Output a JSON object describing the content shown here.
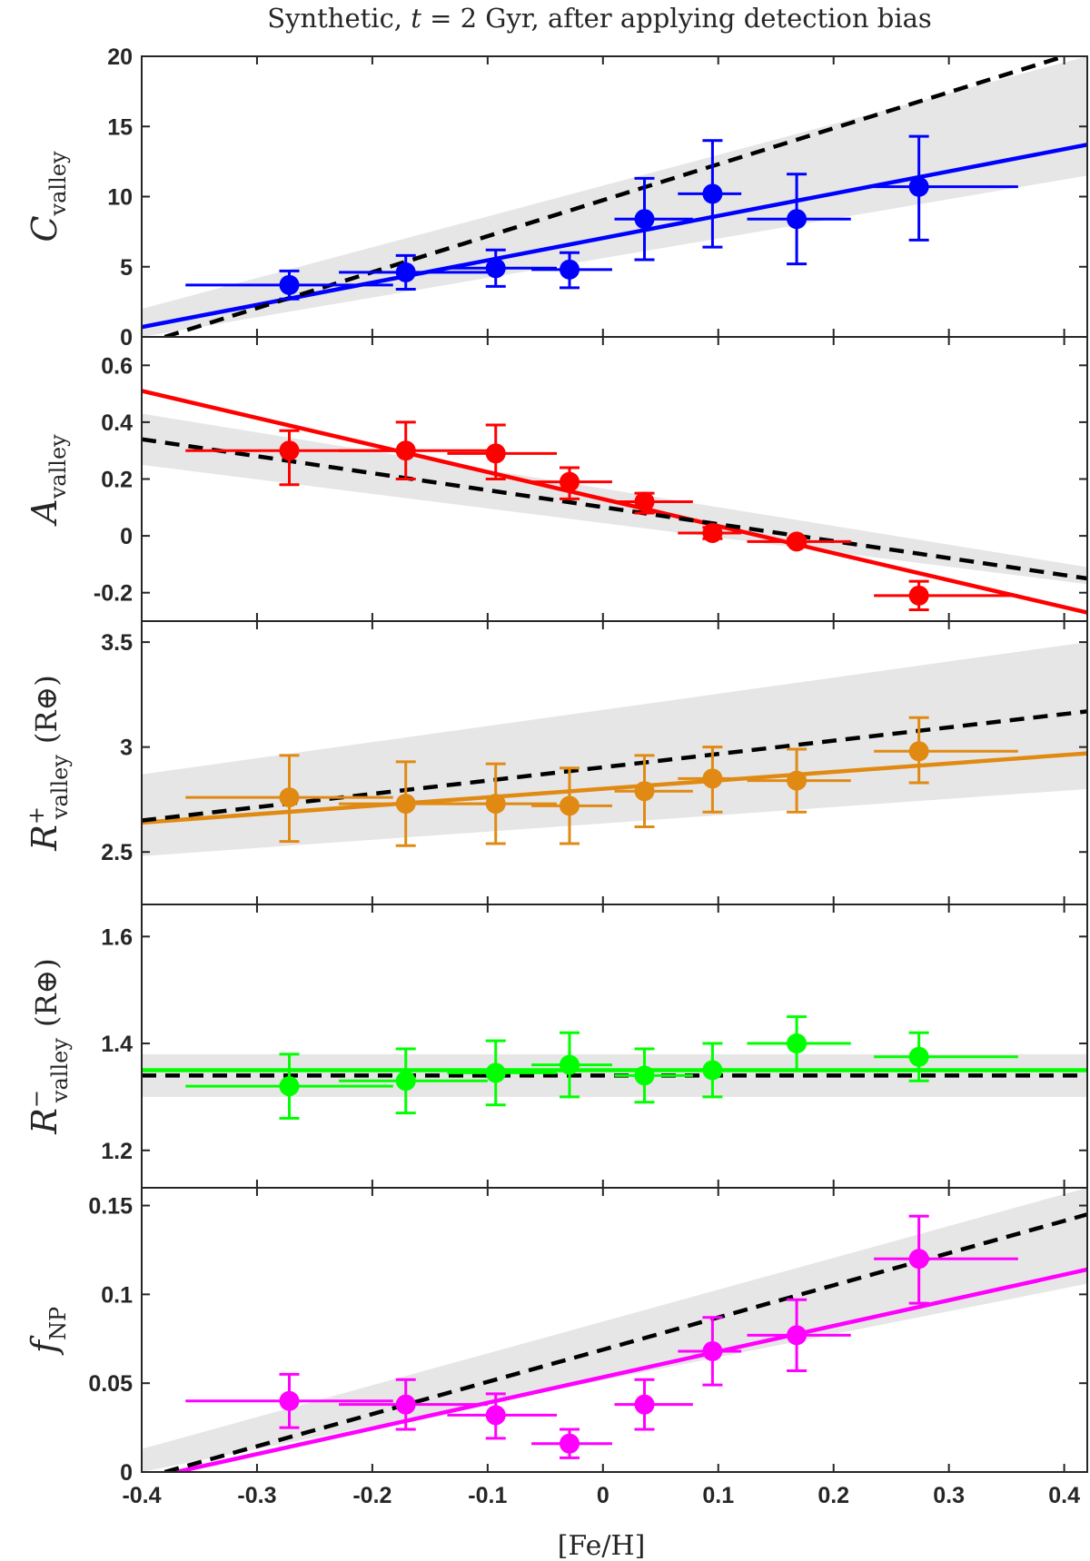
{
  "figure": {
    "title": "Synthetic, t = 2 Gyr, after applying detection bias",
    "title_parts": {
      "prefix": "Synthetic, ",
      "t": "t",
      "suffix": " = 2 Gyr, after applying detection bias"
    },
    "xlabel": "[Fe/H]"
  },
  "chart_data": [
    {
      "type": "scatter",
      "name": "C_valley",
      "ylabel_main": "C",
      "ylabel_sub": "valley",
      "ylabel_sup": "",
      "ylabel_unit": "",
      "color": "#0000ff",
      "xlim": [
        -0.4,
        0.42
      ],
      "ylim": [
        0,
        20
      ],
      "xticks": [
        -0.4,
        -0.3,
        -0.2,
        -0.1,
        0,
        0.1,
        0.2,
        0.3,
        0.4
      ],
      "yticks": [
        0,
        5,
        10,
        15,
        20
      ],
      "ytick_labels": [
        "0",
        "5",
        "10",
        "15",
        "20"
      ],
      "show_xtick_labels": false,
      "points": [
        {
          "x": -0.272,
          "y": 3.7,
          "xlo": -0.362,
          "xhi": -0.182,
          "ylo": 2.7,
          "yhi": 4.7
        },
        {
          "x": -0.171,
          "y": 4.6,
          "xlo": -0.229,
          "xhi": -0.1,
          "ylo": 3.4,
          "yhi": 5.8
        },
        {
          "x": -0.093,
          "y": 4.9,
          "xlo": -0.135,
          "xhi": -0.04,
          "ylo": 3.6,
          "yhi": 6.2
        },
        {
          "x": -0.029,
          "y": 4.8,
          "xlo": -0.062,
          "xhi": 0.008,
          "ylo": 3.5,
          "yhi": 6.0
        },
        {
          "x": 0.036,
          "y": 8.4,
          "xlo": 0.01,
          "xhi": 0.078,
          "ylo": 5.5,
          "yhi": 11.3
        },
        {
          "x": 0.095,
          "y": 10.2,
          "xlo": 0.065,
          "xhi": 0.12,
          "ylo": 6.4,
          "yhi": 14.0
        },
        {
          "x": 0.168,
          "y": 8.4,
          "xlo": 0.125,
          "xhi": 0.215,
          "ylo": 5.2,
          "yhi": 11.6
        },
        {
          "x": 0.274,
          "y": 10.7,
          "xlo": 0.235,
          "xhi": 0.36,
          "ylo": 6.9,
          "yhi": 14.3
        }
      ],
      "fit_line": {
        "x": [
          -0.4,
          0.42
        ],
        "y": [
          0.7,
          13.7
        ]
      },
      "dashed_line": {
        "x": [
          -0.38,
          0.4
        ],
        "y": [
          0.0,
          20.0
        ]
      },
      "band": {
        "x": [
          -0.4,
          0.42
        ],
        "lower": [
          0.0,
          11.5
        ],
        "upper": [
          2.0,
          20.0
        ]
      }
    },
    {
      "type": "scatter",
      "name": "A_valley",
      "ylabel_main": "A",
      "ylabel_sub": "valley",
      "ylabel_sup": "",
      "ylabel_unit": "",
      "color": "#ff0000",
      "xlim": [
        -0.4,
        0.42
      ],
      "ylim": [
        -0.3,
        0.7
      ],
      "xticks": [
        -0.4,
        -0.3,
        -0.2,
        -0.1,
        0,
        0.1,
        0.2,
        0.3,
        0.4
      ],
      "yticks": [
        -0.2,
        0,
        0.2,
        0.4,
        0.6
      ],
      "ytick_labels": [
        "-0.2",
        "0",
        "0.2",
        "0.4",
        "0.6"
      ],
      "show_xtick_labels": false,
      "points": [
        {
          "x": -0.272,
          "y": 0.3,
          "xlo": -0.362,
          "xhi": -0.182,
          "ylo": 0.18,
          "yhi": 0.37
        },
        {
          "x": -0.171,
          "y": 0.3,
          "xlo": -0.229,
          "xhi": -0.1,
          "ylo": 0.2,
          "yhi": 0.4
        },
        {
          "x": -0.093,
          "y": 0.29,
          "xlo": -0.135,
          "xhi": -0.04,
          "ylo": 0.2,
          "yhi": 0.39
        },
        {
          "x": -0.029,
          "y": 0.19,
          "xlo": -0.062,
          "xhi": 0.008,
          "ylo": 0.13,
          "yhi": 0.24
        },
        {
          "x": 0.036,
          "y": 0.12,
          "xlo": 0.01,
          "xhi": 0.078,
          "ylo": 0.08,
          "yhi": 0.15
        },
        {
          "x": 0.095,
          "y": 0.01,
          "xlo": 0.065,
          "xhi": 0.12,
          "ylo": -0.01,
          "yhi": 0.03
        },
        {
          "x": 0.168,
          "y": -0.02,
          "xlo": 0.125,
          "xhi": 0.215,
          "ylo": -0.03,
          "yhi": -0.01
        },
        {
          "x": 0.274,
          "y": -0.21,
          "xlo": 0.235,
          "xhi": 0.36,
          "ylo": -0.26,
          "yhi": -0.16
        }
      ],
      "fit_line": {
        "x": [
          -0.4,
          0.42
        ],
        "y": [
          0.51,
          -0.27
        ]
      },
      "dashed_line": {
        "x": [
          -0.4,
          0.42
        ],
        "y": [
          0.34,
          -0.15
        ]
      },
      "band": {
        "x": [
          -0.4,
          0.42
        ],
        "lower": [
          0.25,
          -0.17
        ],
        "upper": [
          0.43,
          -0.11
        ]
      }
    },
    {
      "type": "scatter",
      "name": "R_plus_valley",
      "ylabel_main": "R",
      "ylabel_sub": "valley",
      "ylabel_sup": "+",
      "ylabel_unit": "(R⊕)",
      "color": "#e08a14",
      "xlim": [
        -0.4,
        0.42
      ],
      "ylim": [
        2.25,
        3.6
      ],
      "xticks": [
        -0.4,
        -0.3,
        -0.2,
        -0.1,
        0,
        0.1,
        0.2,
        0.3,
        0.4
      ],
      "yticks": [
        2.5,
        3,
        3.5
      ],
      "ytick_labels": [
        "2.5",
        "3",
        "3.5"
      ],
      "show_xtick_labels": false,
      "points": [
        {
          "x": -0.272,
          "y": 2.76,
          "xlo": -0.362,
          "xhi": -0.182,
          "ylo": 2.55,
          "yhi": 2.96
        },
        {
          "x": -0.171,
          "y": 2.73,
          "xlo": -0.229,
          "xhi": -0.1,
          "ylo": 2.53,
          "yhi": 2.93
        },
        {
          "x": -0.093,
          "y": 2.73,
          "xlo": -0.135,
          "xhi": -0.04,
          "ylo": 2.54,
          "yhi": 2.92
        },
        {
          "x": -0.029,
          "y": 2.72,
          "xlo": -0.062,
          "xhi": 0.008,
          "ylo": 2.54,
          "yhi": 2.9
        },
        {
          "x": 0.036,
          "y": 2.79,
          "xlo": 0.01,
          "xhi": 0.078,
          "ylo": 2.62,
          "yhi": 2.96
        },
        {
          "x": 0.095,
          "y": 2.85,
          "xlo": 0.065,
          "xhi": 0.12,
          "ylo": 2.69,
          "yhi": 3.0
        },
        {
          "x": 0.168,
          "y": 2.84,
          "xlo": 0.125,
          "xhi": 0.215,
          "ylo": 2.69,
          "yhi": 2.99
        },
        {
          "x": 0.274,
          "y": 2.98,
          "xlo": 0.235,
          "xhi": 0.36,
          "ylo": 2.83,
          "yhi": 3.14
        }
      ],
      "fit_line": {
        "x": [
          -0.4,
          0.42
        ],
        "y": [
          2.64,
          2.97
        ]
      },
      "dashed_line": {
        "x": [
          -0.4,
          0.42
        ],
        "y": [
          2.65,
          3.17
        ]
      },
      "band": {
        "x": [
          -0.4,
          0.42
        ],
        "lower": [
          2.48,
          2.8
        ],
        "upper": [
          2.87,
          3.5
        ]
      }
    },
    {
      "type": "scatter",
      "name": "R_minus_valley",
      "ylabel_main": "R",
      "ylabel_sub": "valley",
      "ylabel_sup": "−",
      "ylabel_unit": "(R⊕)",
      "color": "#00ff00",
      "xlim": [
        -0.4,
        0.42
      ],
      "ylim": [
        1.13,
        1.66
      ],
      "xticks": [
        -0.4,
        -0.3,
        -0.2,
        -0.1,
        0,
        0.1,
        0.2,
        0.3,
        0.4
      ],
      "yticks": [
        1.2,
        1.4,
        1.6
      ],
      "ytick_labels": [
        "1.2",
        "1.4",
        "1.6"
      ],
      "show_xtick_labels": false,
      "points": [
        {
          "x": -0.272,
          "y": 1.32,
          "xlo": -0.362,
          "xhi": -0.182,
          "ylo": 1.26,
          "yhi": 1.38
        },
        {
          "x": -0.171,
          "y": 1.33,
          "xlo": -0.229,
          "xhi": -0.1,
          "ylo": 1.27,
          "yhi": 1.39
        },
        {
          "x": -0.093,
          "y": 1.345,
          "xlo": -0.135,
          "xhi": -0.04,
          "ylo": 1.285,
          "yhi": 1.405
        },
        {
          "x": -0.029,
          "y": 1.36,
          "xlo": -0.062,
          "xhi": 0.008,
          "ylo": 1.3,
          "yhi": 1.42
        },
        {
          "x": 0.036,
          "y": 1.34,
          "xlo": 0.01,
          "xhi": 0.078,
          "ylo": 1.29,
          "yhi": 1.39
        },
        {
          "x": 0.095,
          "y": 1.35,
          "xlo": 0.065,
          "xhi": 0.12,
          "ylo": 1.3,
          "yhi": 1.4
        },
        {
          "x": 0.168,
          "y": 1.4,
          "xlo": 0.125,
          "xhi": 0.215,
          "ylo": 1.35,
          "yhi": 1.45
        },
        {
          "x": 0.274,
          "y": 1.375,
          "xlo": 0.235,
          "xhi": 0.36,
          "ylo": 1.33,
          "yhi": 1.42
        }
      ],
      "fit_line": {
        "x": [
          -0.4,
          0.42
        ],
        "y": [
          1.35,
          1.35
        ]
      },
      "dashed_line": {
        "x": [
          -0.4,
          0.42
        ],
        "y": [
          1.34,
          1.34
        ]
      },
      "band": {
        "x": [
          -0.4,
          0.42
        ],
        "lower": [
          1.3,
          1.3
        ],
        "upper": [
          1.38,
          1.38
        ]
      }
    },
    {
      "type": "scatter",
      "name": "f_NP",
      "ylabel_main": "f",
      "ylabel_sub": "NP",
      "ylabel_sup": "",
      "ylabel_unit": "",
      "color": "#ff00ff",
      "xlim": [
        -0.4,
        0.42
      ],
      "ylim": [
        0,
        0.16
      ],
      "xticks": [
        -0.4,
        -0.3,
        -0.2,
        -0.1,
        0,
        0.1,
        0.2,
        0.3,
        0.4
      ],
      "yticks": [
        0,
        0.05,
        0.1,
        0.15
      ],
      "ytick_labels": [
        "0",
        "0.05",
        "0.1",
        "0.15"
      ],
      "show_xtick_labels": true,
      "xtick_labels": [
        "-0.4",
        "-0.3",
        "-0.2",
        "-0.1",
        "0",
        "0.1",
        "0.2",
        "0.3",
        "0.4"
      ],
      "points": [
        {
          "x": -0.272,
          "y": 0.04,
          "xlo": -0.362,
          "xhi": -0.182,
          "ylo": 0.025,
          "yhi": 0.055
        },
        {
          "x": -0.171,
          "y": 0.038,
          "xlo": -0.229,
          "xhi": -0.1,
          "ylo": 0.024,
          "yhi": 0.052
        },
        {
          "x": -0.093,
          "y": 0.032,
          "xlo": -0.135,
          "xhi": -0.04,
          "ylo": 0.019,
          "yhi": 0.044
        },
        {
          "x": -0.029,
          "y": 0.016,
          "xlo": -0.062,
          "xhi": 0.008,
          "ylo": 0.008,
          "yhi": 0.024
        },
        {
          "x": 0.036,
          "y": 0.038,
          "xlo": 0.01,
          "xhi": 0.078,
          "ylo": 0.024,
          "yhi": 0.052
        },
        {
          "x": 0.095,
          "y": 0.068,
          "xlo": 0.065,
          "xhi": 0.12,
          "ylo": 0.049,
          "yhi": 0.087
        },
        {
          "x": 0.168,
          "y": 0.077,
          "xlo": 0.125,
          "xhi": 0.215,
          "ylo": 0.057,
          "yhi": 0.097
        },
        {
          "x": 0.274,
          "y": 0.12,
          "xlo": 0.235,
          "xhi": 0.36,
          "ylo": 0.095,
          "yhi": 0.144
        }
      ],
      "fit_line": {
        "x": [
          -0.37,
          0.42
        ],
        "y": [
          0.0,
          0.114
        ]
      },
      "dashed_line": {
        "x": [
          -0.38,
          0.42
        ],
        "y": [
          0.0,
          0.145
        ]
      },
      "band": {
        "x": [
          -0.4,
          0.42
        ],
        "lower": [
          0.0,
          0.106
        ],
        "upper": [
          0.013,
          0.16
        ]
      }
    }
  ]
}
